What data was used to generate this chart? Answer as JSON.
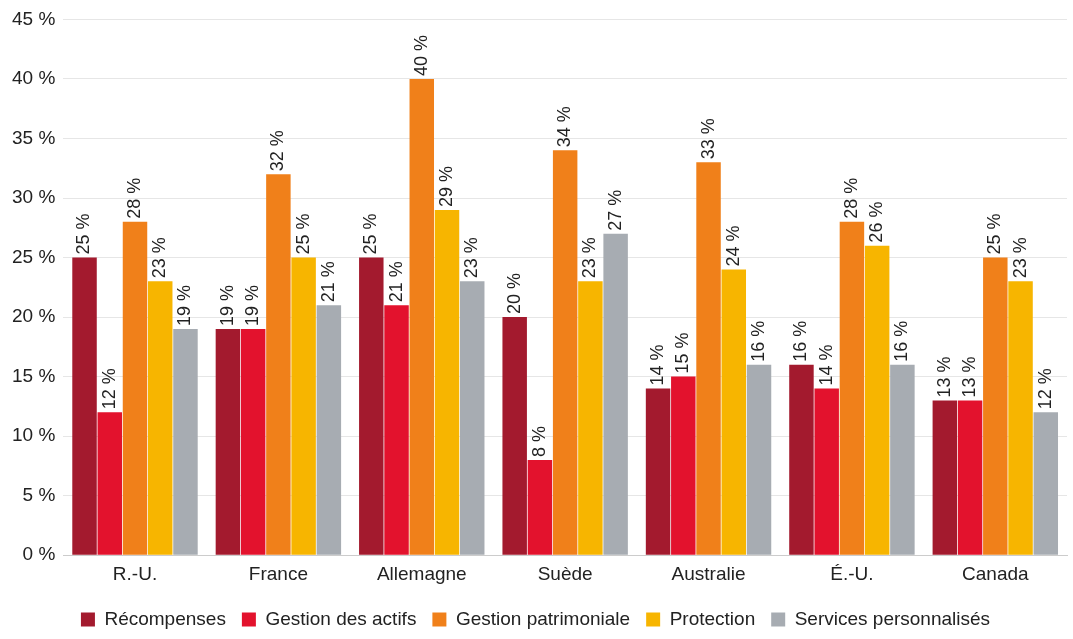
{
  "chart_data": {
    "type": "bar",
    "categories": [
      "R.-U.",
      "France",
      "Allemagne",
      "Suède",
      "Australie",
      "É.-U.",
      "Canada"
    ],
    "series": [
      {
        "name": "Récompenses",
        "color": "#a31a2e",
        "values": [
          25,
          19,
          25,
          20,
          14,
          16,
          13
        ],
        "value_labels": [
          "25 %",
          "19 %",
          "25 %",
          "20 %",
          "14 %",
          "16 %",
          "13 %"
        ]
      },
      {
        "name": "Gestion des actifs",
        "color": "#e3122d",
        "values": [
          12,
          19,
          21,
          8,
          15,
          14,
          13
        ],
        "value_labels": [
          "12 %",
          "19 %",
          "21 %",
          "8 %",
          "15 %",
          "14 %",
          "13 %"
        ]
      },
      {
        "name": "Gestion patrimoniale",
        "color": "#f0801a",
        "values": [
          28,
          32,
          40,
          34,
          33,
          28,
          25
        ],
        "value_labels": [
          "28 %",
          "32 %",
          "40 %",
          "34 %",
          "33 %",
          "28 %",
          "25 %"
        ]
      },
      {
        "name": "Protection",
        "color": "#f7b500",
        "values": [
          23,
          25,
          29,
          23,
          24,
          26,
          23
        ],
        "value_labels": [
          "23 %",
          "25 %",
          "29 %",
          "23 %",
          "24 %",
          "26 %",
          "23 %"
        ]
      },
      {
        "name": "Services personnalisés",
        "color": "#a7acb2",
        "values": [
          19,
          21,
          23,
          27,
          16,
          16,
          12
        ],
        "value_labels": [
          "19 %",
          "21 %",
          "23 %",
          "27 %",
          "16 %",
          "16 %",
          "12 %"
        ]
      }
    ],
    "ylim": [
      0,
      45
    ],
    "yticks": [
      {
        "value": 0,
        "label": "0 %"
      },
      {
        "value": 5,
        "label": "5 %"
      },
      {
        "value": 10,
        "label": "10 %"
      },
      {
        "value": 15,
        "label": "15 %"
      },
      {
        "value": 20,
        "label": "20 %"
      },
      {
        "value": 25,
        "label": "25 %"
      },
      {
        "value": 30,
        "label": "30 %"
      },
      {
        "value": 35,
        "label": "35 %"
      },
      {
        "value": 40,
        "label": "40 %"
      },
      {
        "value": 45,
        "label": "45 %"
      }
    ],
    "grid": "y",
    "legend": "bottom"
  }
}
